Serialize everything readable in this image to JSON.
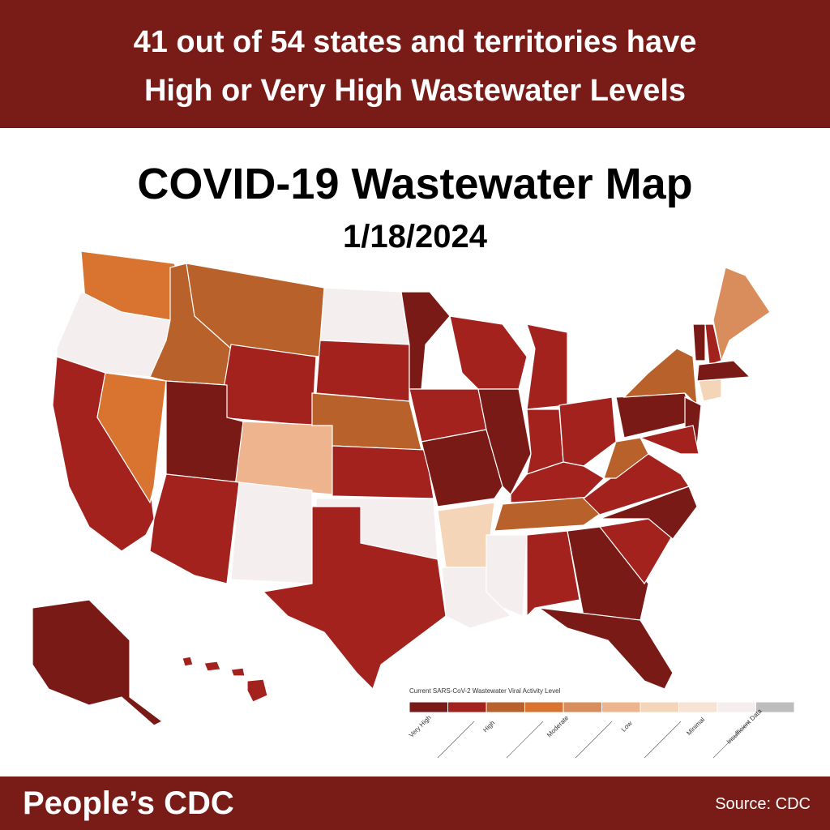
{
  "banner": {
    "lines": [
      "41 out of 54 states and territories have",
      "High or Very High Wastewater Levels"
    ]
  },
  "title": "COVID-19 Wastewater Map",
  "date": "1/18/2024",
  "legend": {
    "title": "Current SARS-CoV-2 Wastewater Viral Activity Level",
    "colors": [
      "#7a1a16",
      "#a3221e",
      "#b8612a",
      "#d8742f",
      "#d98d5c",
      "#edb48e",
      "#f5d5b8",
      "#f7e3d3",
      "#f4efee",
      "#bdbdbd"
    ],
    "labels": [
      "Very High",
      "High",
      "Moderate",
      "Low",
      "Minimal",
      "Insufficient Data"
    ]
  },
  "footer": {
    "brand": "People’s CDC",
    "source": "Source: CDC"
  }
}
